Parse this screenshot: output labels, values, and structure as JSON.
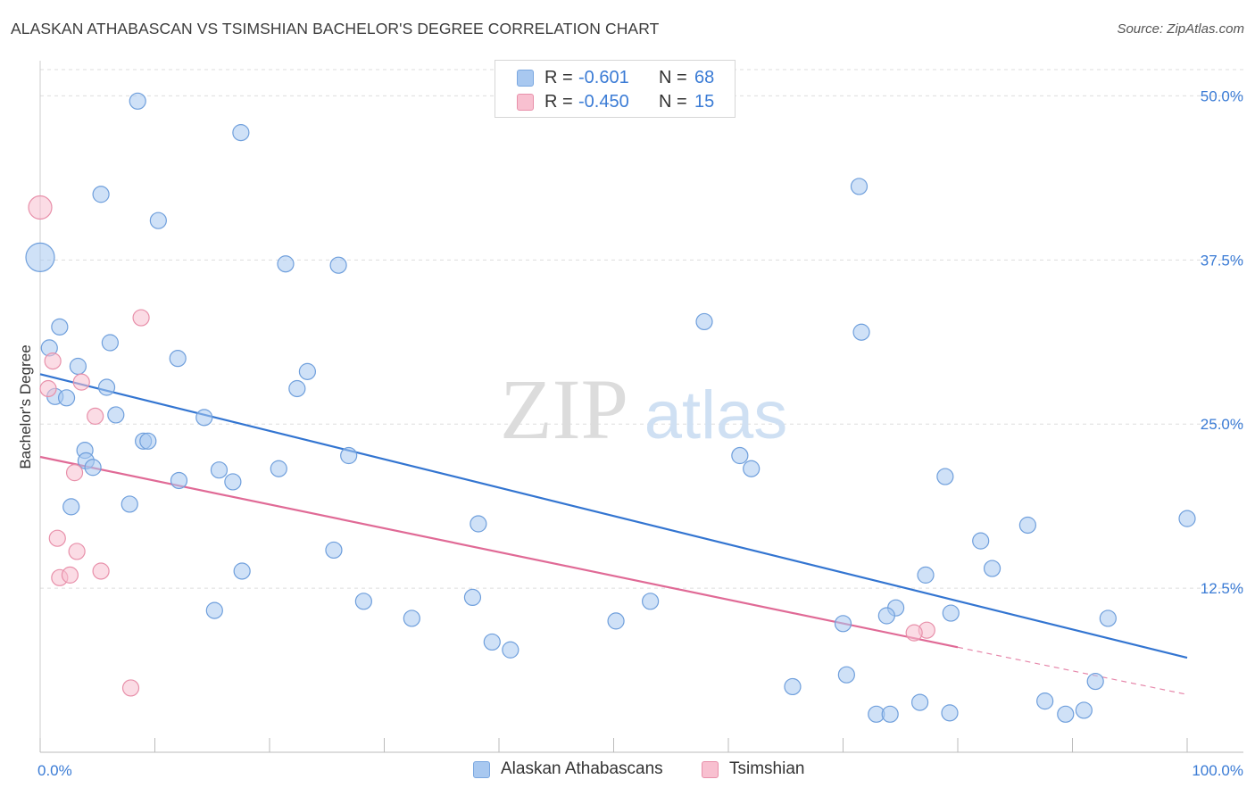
{
  "header": {
    "title": "ALASKAN ATHABASCAN VS TSIMSHIAN BACHELOR'S DEGREE CORRELATION CHART",
    "source": "Source: ZipAtlas.com"
  },
  "watermark": {
    "zip": "ZIP",
    "atlas": "atlas"
  },
  "legend_top": {
    "rows": [
      {
        "r_label": "R =",
        "r_value": "-0.601",
        "n_label": "N =",
        "n_value": "68",
        "color": "#a8c8f0",
        "border": "#7aa7e0"
      },
      {
        "r_label": "R =",
        "r_value": "-0.450",
        "n_label": "N =",
        "n_value": "15",
        "color": "#f8c0d0",
        "border": "#e890aa"
      }
    ]
  },
  "legend_bottom": {
    "items": [
      {
        "label": "Alaskan Athabascans",
        "color": "#a8c8f0",
        "border": "#7aa7e0"
      },
      {
        "label": "Tsimshian",
        "color": "#f8c0d0",
        "border": "#e890aa"
      }
    ]
  },
  "chart_data": {
    "type": "scatter",
    "title": "ALASKAN ATHABASCAN VS TSIMSHIAN BACHELOR'S DEGREE CORRELATION CHART",
    "xlabel": "",
    "ylabel": "Bachelor's Degree",
    "xlim": [
      0,
      100
    ],
    "ylim": [
      0,
      52
    ],
    "x_tick_labels": [
      {
        "value": 0,
        "label": "0.0%"
      },
      {
        "value": 100,
        "label": "100.0%"
      }
    ],
    "y_ticks": [
      {
        "value": 12.5,
        "label": "12.5%"
      },
      {
        "value": 25,
        "label": "25.0%"
      },
      {
        "value": 37.5,
        "label": "37.5%"
      },
      {
        "value": 50,
        "label": "50.0%"
      }
    ],
    "x_minor_ticks": [
      0,
      10,
      20,
      30,
      40,
      50,
      60,
      70,
      80,
      90,
      100
    ],
    "grid": true,
    "series": [
      {
        "name": "Alaskan Athabascans",
        "color": "#a8c8f0",
        "stroke": "#6f9fdc",
        "line_color": "#3375d1",
        "trend": {
          "x0": 0,
          "y0": 28.8,
          "x1": 100,
          "y1": 7.2
        },
        "points": [
          {
            "x": 0,
            "y": 37.7,
            "s": 16
          },
          {
            "x": 8.5,
            "y": 49.6,
            "s": 9
          },
          {
            "x": 17.5,
            "y": 47.2,
            "s": 9
          },
          {
            "x": 5.3,
            "y": 42.5,
            "s": 9
          },
          {
            "x": 10.3,
            "y": 40.5,
            "s": 9
          },
          {
            "x": 21.4,
            "y": 37.2,
            "s": 9
          },
          {
            "x": 26,
            "y": 37.1,
            "s": 9
          },
          {
            "x": 71.4,
            "y": 43.1,
            "s": 9
          },
          {
            "x": 57.9,
            "y": 32.8,
            "s": 9
          },
          {
            "x": 71.6,
            "y": 32.0,
            "s": 9
          },
          {
            "x": 1.7,
            "y": 32.4,
            "s": 9
          },
          {
            "x": 0.8,
            "y": 30.8,
            "s": 9
          },
          {
            "x": 6.1,
            "y": 31.2,
            "s": 9
          },
          {
            "x": 12,
            "y": 30.0,
            "s": 9
          },
          {
            "x": 3.3,
            "y": 29.4,
            "s": 9
          },
          {
            "x": 23.3,
            "y": 29.0,
            "s": 9
          },
          {
            "x": 5.8,
            "y": 27.8,
            "s": 9
          },
          {
            "x": 22.4,
            "y": 27.7,
            "s": 9
          },
          {
            "x": 1.3,
            "y": 27.1,
            "s": 9
          },
          {
            "x": 2.3,
            "y": 27.0,
            "s": 9
          },
          {
            "x": 6.6,
            "y": 25.7,
            "s": 9
          },
          {
            "x": 14.3,
            "y": 25.5,
            "s": 9
          },
          {
            "x": 9,
            "y": 23.7,
            "s": 9
          },
          {
            "x": 9.4,
            "y": 23.7,
            "s": 9
          },
          {
            "x": 3.9,
            "y": 23.0,
            "s": 9
          },
          {
            "x": 4,
            "y": 22.2,
            "s": 9
          },
          {
            "x": 4.6,
            "y": 21.7,
            "s": 9
          },
          {
            "x": 26.9,
            "y": 22.6,
            "s": 9
          },
          {
            "x": 61,
            "y": 22.6,
            "s": 9
          },
          {
            "x": 15.6,
            "y": 21.5,
            "s": 9
          },
          {
            "x": 20.8,
            "y": 21.6,
            "s": 9
          },
          {
            "x": 62,
            "y": 21.6,
            "s": 9
          },
          {
            "x": 12.1,
            "y": 20.7,
            "s": 9
          },
          {
            "x": 16.8,
            "y": 20.6,
            "s": 9
          },
          {
            "x": 78.9,
            "y": 21.0,
            "s": 9
          },
          {
            "x": 2.7,
            "y": 18.7,
            "s": 9
          },
          {
            "x": 7.8,
            "y": 18.9,
            "s": 9
          },
          {
            "x": 38.2,
            "y": 17.4,
            "s": 9
          },
          {
            "x": 86.1,
            "y": 17.3,
            "s": 9
          },
          {
            "x": 100,
            "y": 17.8,
            "s": 9
          },
          {
            "x": 82,
            "y": 16.1,
            "s": 9
          },
          {
            "x": 25.6,
            "y": 15.4,
            "s": 9
          },
          {
            "x": 17.6,
            "y": 13.8,
            "s": 9
          },
          {
            "x": 83,
            "y": 14.0,
            "s": 9
          },
          {
            "x": 77.2,
            "y": 13.5,
            "s": 9
          },
          {
            "x": 37.7,
            "y": 11.8,
            "s": 9
          },
          {
            "x": 28.2,
            "y": 11.5,
            "s": 9
          },
          {
            "x": 53.2,
            "y": 11.5,
            "s": 9
          },
          {
            "x": 74.6,
            "y": 11.0,
            "s": 9
          },
          {
            "x": 15.2,
            "y": 10.8,
            "s": 9
          },
          {
            "x": 32.4,
            "y": 10.2,
            "s": 9
          },
          {
            "x": 50.2,
            "y": 10.0,
            "s": 9
          },
          {
            "x": 73.8,
            "y": 10.4,
            "s": 9
          },
          {
            "x": 79.4,
            "y": 10.6,
            "s": 9
          },
          {
            "x": 93.1,
            "y": 10.2,
            "s": 9
          },
          {
            "x": 70,
            "y": 9.8,
            "s": 9
          },
          {
            "x": 39.4,
            "y": 8.4,
            "s": 9
          },
          {
            "x": 41,
            "y": 7.8,
            "s": 9
          },
          {
            "x": 70.3,
            "y": 5.9,
            "s": 9
          },
          {
            "x": 65.6,
            "y": 5.0,
            "s": 9
          },
          {
            "x": 92,
            "y": 5.4,
            "s": 9
          },
          {
            "x": 76.7,
            "y": 3.8,
            "s": 9
          },
          {
            "x": 87.6,
            "y": 3.9,
            "s": 9
          },
          {
            "x": 72.9,
            "y": 2.9,
            "s": 9
          },
          {
            "x": 74.1,
            "y": 2.9,
            "s": 9
          },
          {
            "x": 79.3,
            "y": 3.0,
            "s": 9
          },
          {
            "x": 89.4,
            "y": 2.9,
            "s": 9
          },
          {
            "x": 91,
            "y": 3.2,
            "s": 9
          }
        ]
      },
      {
        "name": "Tsimshian",
        "color": "#f8c0d0",
        "stroke": "#e890aa",
        "line_color": "#e06a96",
        "trend": {
          "x0": 0,
          "y0": 22.5,
          "x1": 80,
          "y1": 8.0
        },
        "trend_dashed": {
          "x0": 80,
          "y0": 8.0,
          "x1": 100,
          "y1": 4.4
        },
        "points": [
          {
            "x": 0,
            "y": 41.5,
            "s": 13
          },
          {
            "x": 8.8,
            "y": 33.1,
            "s": 9
          },
          {
            "x": 1.1,
            "y": 29.8,
            "s": 9
          },
          {
            "x": 3.6,
            "y": 28.2,
            "s": 9
          },
          {
            "x": 0.7,
            "y": 27.7,
            "s": 9
          },
          {
            "x": 4.8,
            "y": 25.6,
            "s": 9
          },
          {
            "x": 3,
            "y": 21.3,
            "s": 9
          },
          {
            "x": 1.5,
            "y": 16.3,
            "s": 9
          },
          {
            "x": 3.2,
            "y": 15.3,
            "s": 9
          },
          {
            "x": 5.3,
            "y": 13.8,
            "s": 9
          },
          {
            "x": 1.7,
            "y": 13.3,
            "s": 9
          },
          {
            "x": 2.6,
            "y": 13.5,
            "s": 9
          },
          {
            "x": 77.3,
            "y": 9.3,
            "s": 9
          },
          {
            "x": 76.2,
            "y": 9.1,
            "s": 9
          },
          {
            "x": 7.9,
            "y": 4.9,
            "s": 9
          }
        ]
      }
    ]
  }
}
